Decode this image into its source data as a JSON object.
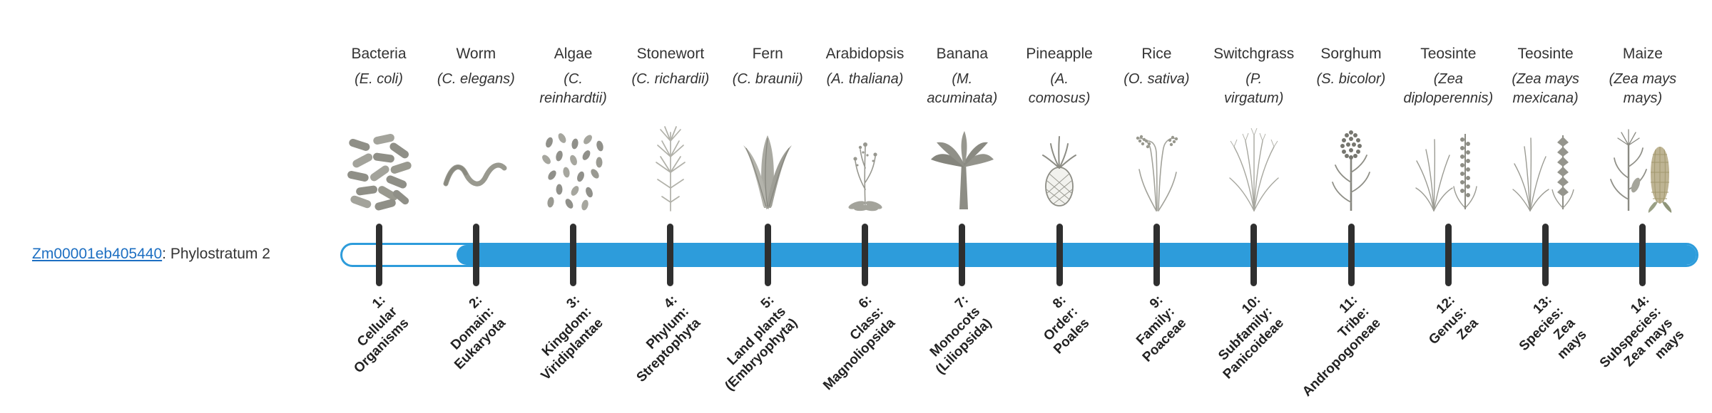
{
  "figure": {
    "gene": {
      "id": "Zm00001eb405440",
      "label_suffix": ": Phylostratum 2",
      "phylostratum": "2"
    }
  },
  "colors": {
    "bar_fill": "#2d9cdb",
    "tick": "#2f2f2f",
    "text": "#333333",
    "link": "#1d6fc2"
  },
  "strata": [
    {
      "number": 1,
      "common": "Bacteria",
      "scientific": "(E. coli)",
      "tick_label": "1:\nCellular\nOrganisms",
      "icon": "bacteria"
    },
    {
      "number": 2,
      "common": "Worm",
      "scientific": "(C. elegans)",
      "tick_label": "2:\nDomain:\nEukaryota",
      "icon": "worm"
    },
    {
      "number": 3,
      "common": "Algae",
      "scientific": "(C.\nreinhardtii)",
      "tick_label": "3:\nKingdom:\nViridiplantae",
      "icon": "algae"
    },
    {
      "number": 4,
      "common": "Stonewort",
      "scientific": "(C. richardii)",
      "tick_label": "4:\nPhylum:\nStreptophyta",
      "icon": "stonewort"
    },
    {
      "number": 5,
      "common": "Fern",
      "scientific": "(C. braunii)",
      "tick_label": "5:\nLand plants\n(Embryophyta)",
      "icon": "fern"
    },
    {
      "number": 6,
      "common": "Arabidopsis",
      "scientific": "(A. thaliana)",
      "tick_label": "6:\nClass:\nMagnoliopsida",
      "icon": "arabidopsis"
    },
    {
      "number": 7,
      "common": "Banana",
      "scientific": "(M.\nacuminata)",
      "tick_label": "7:\nMonocots\n(Liliopsida)",
      "icon": "banana"
    },
    {
      "number": 8,
      "common": "Pineapple",
      "scientific": "(A.\ncomosus)",
      "tick_label": "8:\nOrder:\nPoales",
      "icon": "pineapple"
    },
    {
      "number": 9,
      "common": "Rice",
      "scientific": "(O. sativa)",
      "tick_label": "9:\nFamily:\nPoaceae",
      "icon": "rice"
    },
    {
      "number": 10,
      "common": "Switchgrass",
      "scientific": "(P.\nvirgatum)",
      "tick_label": "10:\nSubfamily:\nPanicoideae",
      "icon": "switchgrass"
    },
    {
      "number": 11,
      "common": "Sorghum",
      "scientific": "(S. bicolor)",
      "tick_label": "11:\nTribe:\nAndropogoneae",
      "icon": "sorghum"
    },
    {
      "number": 12,
      "common": "Teosinte",
      "scientific": "(Zea\ndiploperennis)",
      "tick_label": "12:\nGenus:\nZea",
      "icon": "teosinte-diploperennis"
    },
    {
      "number": 13,
      "common": "Teosinte",
      "scientific": "(Zea mays\nmexicana)",
      "tick_label": "13:\nSpecies:\nZea\nmays",
      "icon": "teosinte-mexicana"
    },
    {
      "number": 14,
      "common": "Maize",
      "scientific": "(Zea mays\nmays)",
      "tick_label": "14:\nSubspecies:\nZea mays\nmays",
      "icon": "maize"
    }
  ]
}
